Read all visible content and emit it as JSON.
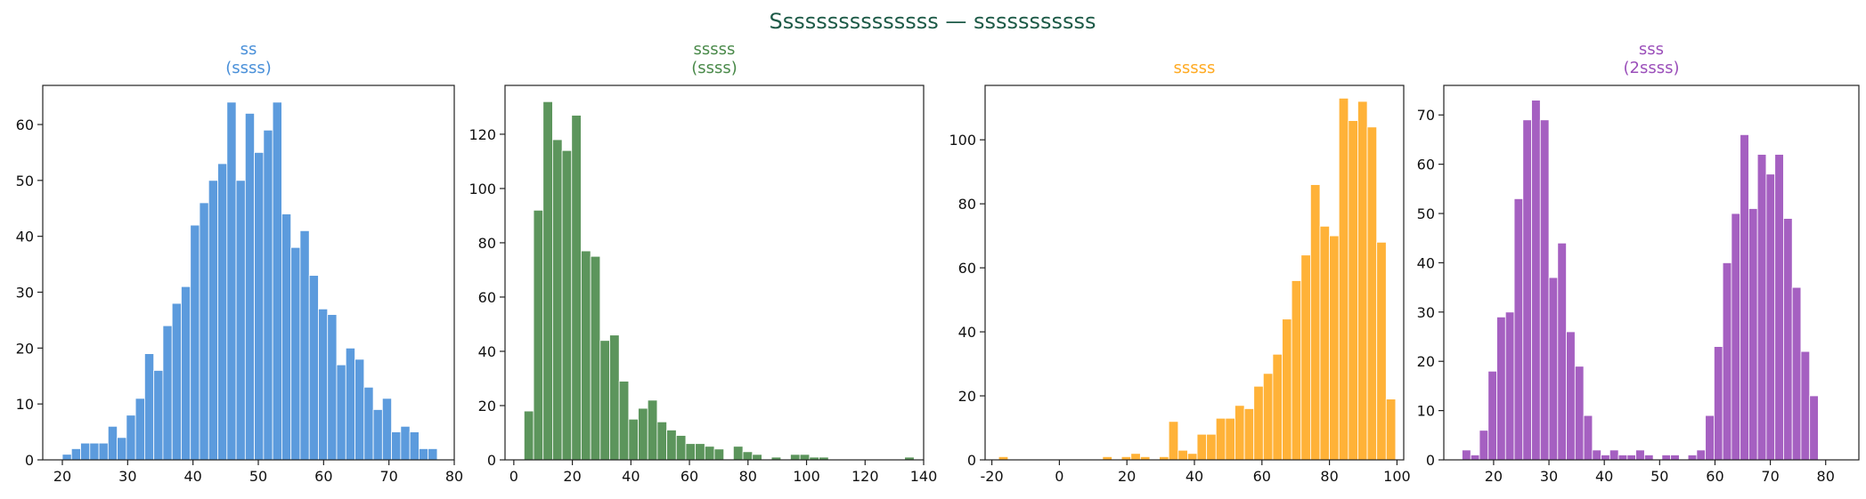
{
  "suptitle": "Ѕѕѕѕѕѕѕѕѕѕѕѕѕѕѕ — ѕѕѕѕѕѕѕѕѕѕѕ",
  "chart_data": [
    {
      "type": "histogram",
      "title_lines": [
        "ѕѕ",
        "(ѕѕѕѕ)"
      ],
      "color": "#4a90d9",
      "xlim": [
        17,
        80
      ],
      "ylim": [
        0,
        67
      ],
      "xticks": [
        20,
        30,
        40,
        50,
        60,
        70,
        80
      ],
      "yticks": [
        0,
        10,
        20,
        30,
        40,
        50,
        60
      ],
      "xtick_labels": [
        "20",
        "30",
        "40",
        "50",
        "60",
        "70",
        "80"
      ],
      "ytick_labels": [
        "0",
        "10",
        "20",
        "30",
        "40",
        "50",
        "60"
      ],
      "bin_start": 20,
      "bin_width": 1.4,
      "values": [
        1,
        2,
        3,
        3,
        3,
        6,
        4,
        8,
        11,
        19,
        16,
        24,
        28,
        31,
        42,
        46,
        50,
        53,
        64,
        50,
        62,
        55,
        59,
        64,
        44,
        38,
        41,
        33,
        27,
        26,
        17,
        20,
        18,
        13,
        9,
        11,
        5,
        6,
        5,
        2,
        2
      ]
    },
    {
      "type": "histogram",
      "title_lines": [
        "ѕѕѕѕѕ",
        "(ѕѕѕѕ)"
      ],
      "color": "#4a8a4a",
      "xlim": [
        -3,
        140
      ],
      "ylim": [
        0,
        138
      ],
      "xticks": [
        0,
        20,
        40,
        60,
        80,
        100,
        120,
        140
      ],
      "yticks": [
        0,
        20,
        40,
        60,
        80,
        100,
        120
      ],
      "xtick_labels": [
        "0",
        "20",
        "40",
        "60",
        "80",
        "100",
        "120",
        "140"
      ],
      "ytick_labels": [
        "0",
        "20",
        "40",
        "60",
        "80",
        "100",
        "120"
      ],
      "bin_start": 3.5,
      "bin_width": 3.25,
      "values": [
        18,
        92,
        132,
        118,
        114,
        127,
        77,
        75,
        44,
        46,
        29,
        15,
        19,
        22,
        14,
        11,
        9,
        6,
        6,
        5,
        4,
        0,
        5,
        3,
        2,
        0,
        1,
        0,
        2,
        2,
        1,
        1,
        0,
        0,
        0,
        0,
        0,
        0,
        0,
        0,
        1
      ]
    },
    {
      "type": "histogram",
      "title_lines": [
        "ѕѕѕѕѕ"
      ],
      "color": "#ffaa22",
      "xlim": [
        -22,
        102
      ],
      "ylim": [
        0,
        117
      ],
      "xticks": [
        -20,
        0,
        20,
        40,
        60,
        80,
        100
      ],
      "yticks": [
        0,
        20,
        40,
        60,
        80,
        100
      ],
      "xtick_labels": [
        "-20",
        "0",
        "20",
        "40",
        "60",
        "80",
        "100"
      ],
      "ytick_labels": [
        "0",
        "20",
        "40",
        "60",
        "80",
        "100"
      ],
      "bin_start": -18,
      "bin_width": 2.8,
      "values": [
        1,
        0,
        0,
        0,
        0,
        0,
        0,
        0,
        0,
        0,
        0,
        1,
        0,
        1,
        2,
        1,
        0,
        1,
        12,
        3,
        2,
        8,
        8,
        13,
        13,
        17,
        16,
        23,
        27,
        33,
        44,
        56,
        64,
        86,
        73,
        70,
        113,
        106,
        112,
        104,
        68,
        19
      ]
    },
    {
      "type": "histogram",
      "title_lines": [
        "ѕѕѕ",
        "(2ѕѕѕѕ)"
      ],
      "color": "#9b4fba",
      "xlim": [
        11,
        86
      ],
      "ylim": [
        0,
        76
      ],
      "xticks": [
        20,
        30,
        40,
        50,
        60,
        70,
        80
      ],
      "yticks": [
        0,
        10,
        20,
        30,
        40,
        50,
        60,
        70
      ],
      "xtick_labels": [
        "20",
        "30",
        "40",
        "50",
        "60",
        "70",
        "80"
      ],
      "ytick_labels": [
        "0",
        "10",
        "20",
        "30",
        "40",
        "50",
        "60",
        "70"
      ],
      "bin_start": 14.3,
      "bin_width": 1.57,
      "values": [
        2,
        1,
        6,
        18,
        29,
        30,
        53,
        69,
        73,
        69,
        37,
        44,
        26,
        19,
        9,
        2,
        1,
        2,
        1,
        1,
        2,
        1,
        0,
        1,
        1,
        0,
        1,
        2,
        9,
        23,
        40,
        50,
        66,
        51,
        62,
        58,
        62,
        49,
        35,
        22,
        13,
        0,
        0,
        0
      ]
    }
  ]
}
